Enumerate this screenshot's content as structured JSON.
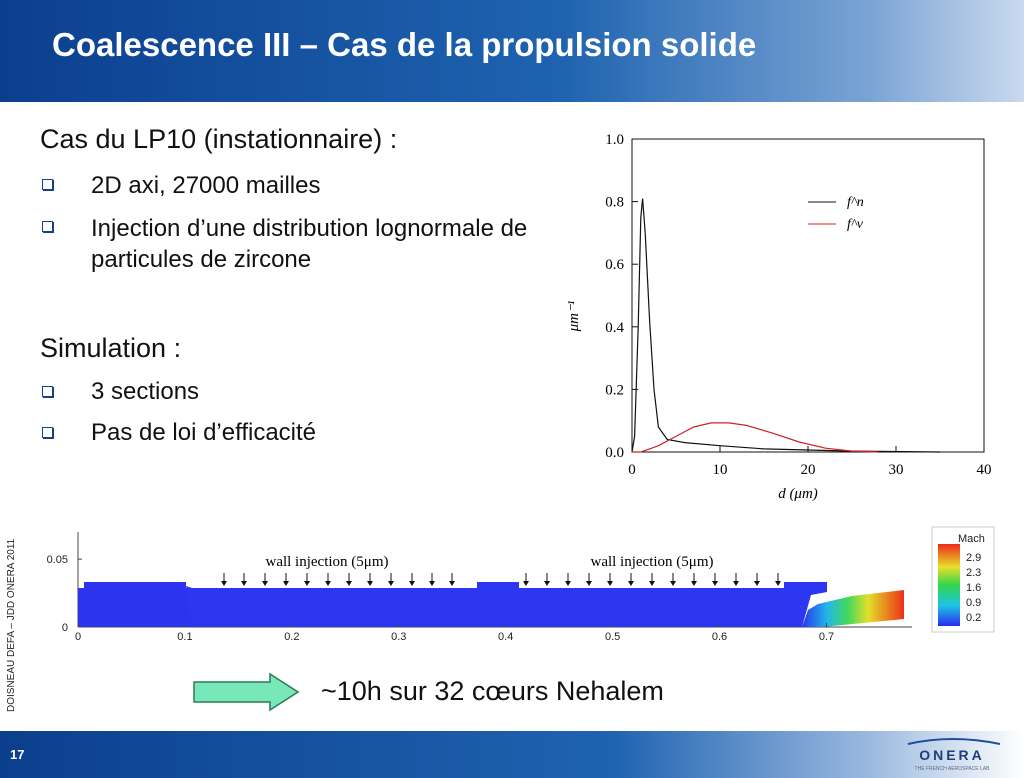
{
  "slide": {
    "title": "Coalescence III – Cas de la propulsion solide",
    "page_number": "17",
    "side_note": "DOISNEAU DEFA – JDD ONERA 2011",
    "logo_text": "ONERA",
    "logo_sub": "THE FRENCH AEROSPACE LAB"
  },
  "left": {
    "heading1": "Cas du LP10 (instationnaire) :",
    "bullets1": [
      "2D axi, 27000 mailles",
      "Injection d’une distribution lognormale de particules de zircone"
    ],
    "heading2": "Simulation :",
    "bullets2": [
      "3 sections",
      "Pas de loi d’efficacité"
    ]
  },
  "note": "~10h sur 32 cœurs Nehalem",
  "chart_data": [
    {
      "type": "line",
      "xlabel": "d (μm)",
      "ylabel": "μm⁻¹",
      "xlim": [
        0,
        40
      ],
      "ylim": [
        0,
        1.0
      ],
      "x_ticks": [
        "0",
        "10",
        "20",
        "30",
        "40"
      ],
      "y_ticks": [
        "0.0",
        "0.2",
        "0.4",
        "0.6",
        "0.8",
        "1.0"
      ],
      "legend": "top-right",
      "series": [
        {
          "name": "f^n",
          "color": "#111111",
          "points": [
            [
              0,
              0.0
            ],
            [
              0.3,
              0.05
            ],
            [
              0.7,
              0.4
            ],
            [
              1.0,
              0.75
            ],
            [
              1.2,
              0.81
            ],
            [
              1.5,
              0.7
            ],
            [
              2,
              0.42
            ],
            [
              2.5,
              0.2
            ],
            [
              3,
              0.08
            ],
            [
              4,
              0.04
            ],
            [
              6,
              0.03
            ],
            [
              10,
              0.02
            ],
            [
              15,
              0.01
            ],
            [
              25,
              0.003
            ],
            [
              35,
              0.0
            ]
          ]
        },
        {
          "name": "f^v",
          "color": "#cc2222",
          "points": [
            [
              0,
              0.0
            ],
            [
              1,
              0.0
            ],
            [
              2,
              0.01
            ],
            [
              3,
              0.02
            ],
            [
              5,
              0.05
            ],
            [
              7,
              0.08
            ],
            [
              9,
              0.093
            ],
            [
              11,
              0.093
            ],
            [
              13,
              0.085
            ],
            [
              16,
              0.06
            ],
            [
              19,
              0.032
            ],
            [
              22,
              0.012
            ],
            [
              25,
              0.003
            ],
            [
              28,
              0.0
            ]
          ]
        }
      ]
    },
    {
      "type": "heatmap",
      "xlim": [
        0,
        0.78
      ],
      "ylim": [
        0,
        0.07
      ],
      "x_ticks": [
        "0",
        "0.1",
        "0.2",
        "0.3",
        "0.4",
        "0.5",
        "0.6",
        "0.7"
      ],
      "y_ticks": [
        "0",
        "0.05"
      ],
      "annotations": [
        "wall injection (5μm)",
        "wall injection (5μm)"
      ],
      "colorbar": {
        "title": "Mach",
        "ticks": [
          "2.9",
          "2.3",
          "1.6",
          "0.9",
          "0.2"
        ]
      }
    }
  ]
}
